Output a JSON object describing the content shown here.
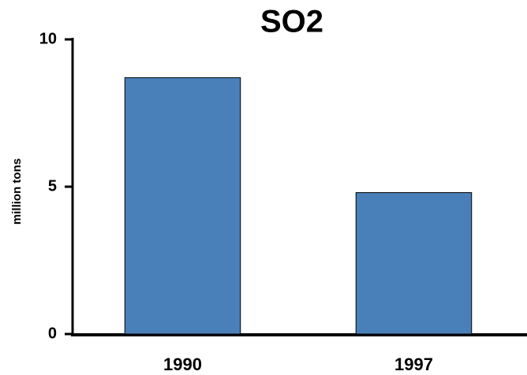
{
  "chart_data": {
    "type": "bar",
    "title": "SO2",
    "y_label": "million tons",
    "categories": [
      "1990",
      "1997"
    ],
    "values": [
      8.7,
      4.8
    ],
    "color": "#4a80b9",
    "ylim": [
      0,
      10
    ],
    "yticks": [
      0,
      5,
      10
    ],
    "grid": false
  }
}
